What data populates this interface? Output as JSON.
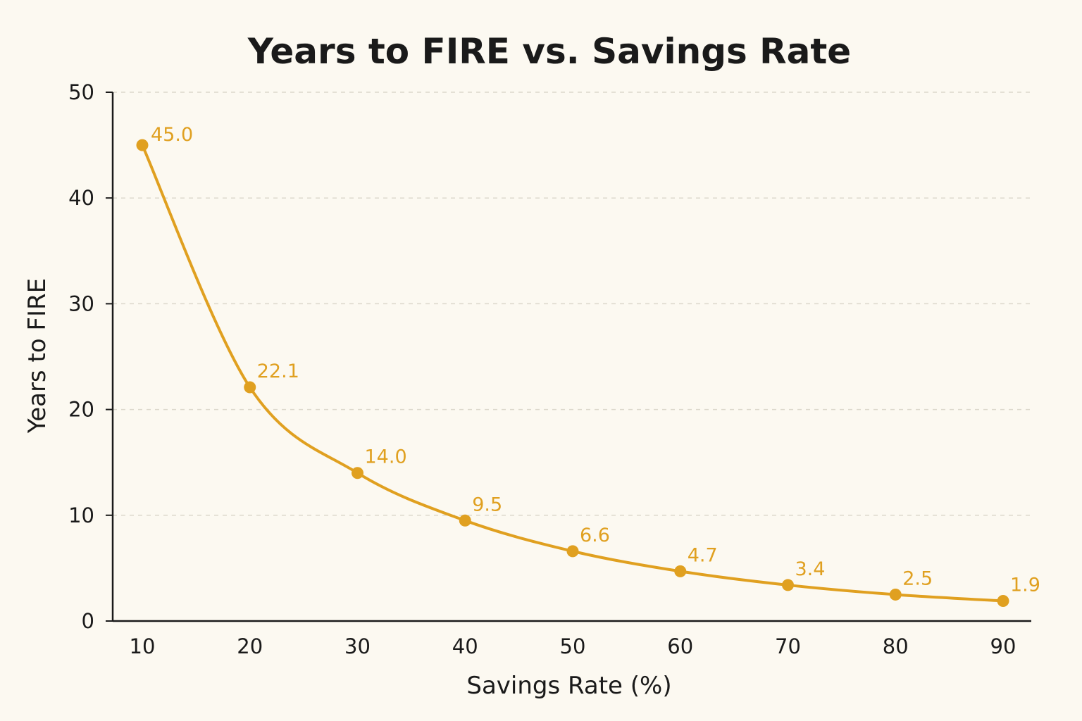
{
  "chart_data": {
    "type": "line",
    "title": "Years to FIRE vs. Savings Rate",
    "xlabel": "Savings Rate (%)",
    "ylabel": "Years to FIRE",
    "x": [
      10,
      20,
      30,
      40,
      50,
      60,
      70,
      80,
      90
    ],
    "xticks": [
      "10",
      "20",
      "30",
      "40",
      "50",
      "60",
      "70",
      "80",
      "90"
    ],
    "yticks": [
      "0",
      "10",
      "20",
      "30",
      "40",
      "50"
    ],
    "ylim": [
      0,
      50
    ],
    "xlim": [
      10,
      90
    ],
    "grid": true,
    "series": [
      {
        "values": [
          45.0,
          22.1,
          14.0,
          9.5,
          6.6,
          4.7,
          3.4,
          2.5,
          1.9
        ],
        "labels": [
          "45.0",
          "22.1",
          "14.0",
          "9.5",
          "6.6",
          "4.7",
          "3.4",
          "2.5",
          "1.9"
        ],
        "color": "#e0a020"
      }
    ]
  }
}
